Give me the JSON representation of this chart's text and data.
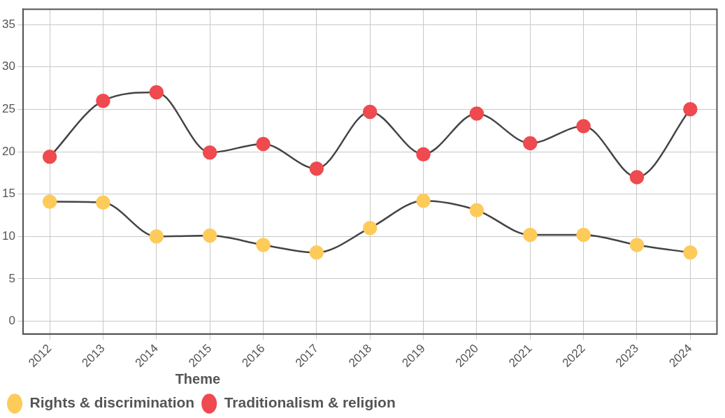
{
  "chart_data": {
    "type": "line",
    "categories": [
      "2012",
      "2013",
      "2014",
      "2015",
      "2016",
      "2017",
      "2018",
      "2019",
      "2020",
      "2021",
      "2022",
      "2023",
      "2024"
    ],
    "series": [
      {
        "name": "Rights & discrimination",
        "color": "#fdcb5a",
        "values": [
          14.1,
          14.0,
          10.0,
          10.1,
          9.0,
          8.1,
          11.0,
          14.2,
          13.1,
          10.2,
          10.2,
          9.0,
          8.1
        ]
      },
      {
        "name": "Traditionalism & religion",
        "color": "#ee4a4f",
        "values": [
          19.4,
          26.0,
          27.0,
          19.9,
          20.9,
          18.0,
          24.7,
          19.7,
          24.5,
          21.0,
          23.0,
          17.0,
          25.0
        ]
      }
    ],
    "ylim": [
      -1.5,
      36.8
    ],
    "yticks": [
      0,
      5,
      10,
      15,
      20,
      25,
      30,
      35
    ],
    "grid": true,
    "legend": "bottom left",
    "legend_title": "Theme",
    "marker": "circle",
    "line_style": "solid"
  }
}
